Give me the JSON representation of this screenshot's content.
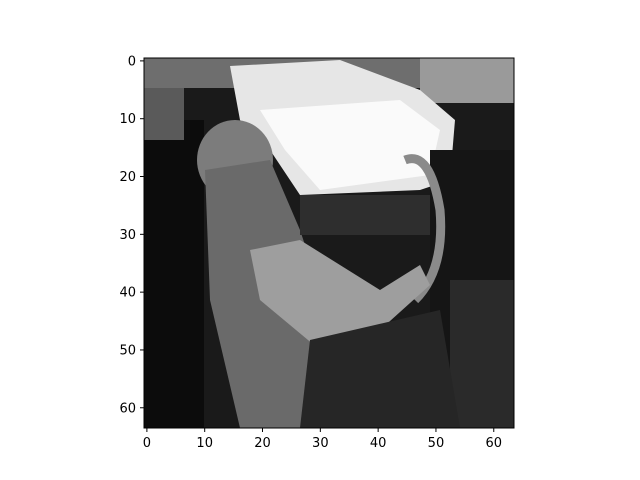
{
  "figure": {
    "image_kind": "grayscale pixel image",
    "image_resolution": [
      64,
      64
    ],
    "colormap": "gray",
    "x_axis": {
      "range": [
        -0.5,
        63.5
      ],
      "ticks": [
        {
          "value": 0,
          "label": "0"
        },
        {
          "value": 10,
          "label": "10"
        },
        {
          "value": 20,
          "label": "20"
        },
        {
          "value": 30,
          "label": "30"
        },
        {
          "value": 40,
          "label": "40"
        },
        {
          "value": 50,
          "label": "50"
        },
        {
          "value": 60,
          "label": "60"
        }
      ]
    },
    "y_axis": {
      "range": [
        -0.5,
        63.5
      ],
      "inverted": true,
      "ticks": [
        {
          "value": 0,
          "label": "0"
        },
        {
          "value": 10,
          "label": "10"
        },
        {
          "value": 20,
          "label": "20"
        },
        {
          "value": 30,
          "label": "30"
        },
        {
          "value": 40,
          "label": "40"
        },
        {
          "value": 50,
          "label": "50"
        },
        {
          "value": 60,
          "label": "60"
        }
      ]
    },
    "colors": {
      "frame": "#000000",
      "background": "#ffffff"
    }
  }
}
